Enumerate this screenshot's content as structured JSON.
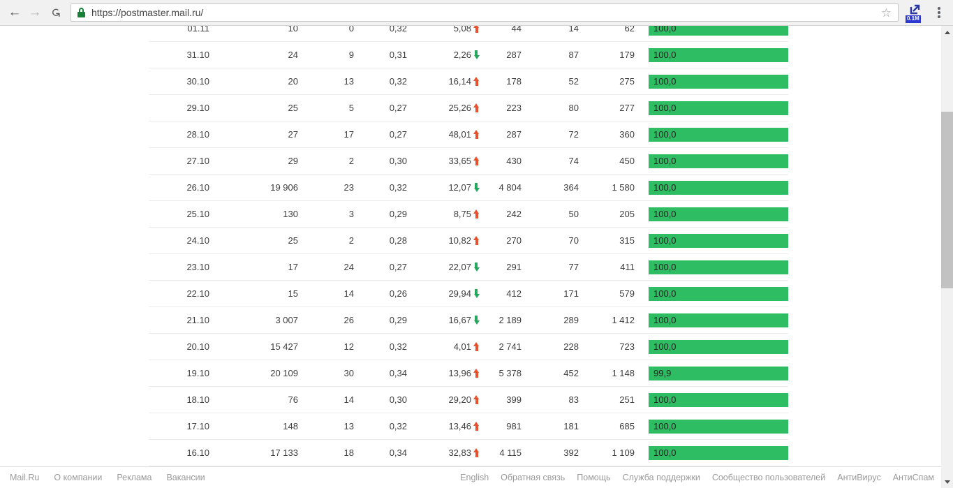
{
  "browser": {
    "url": "https://postmaster.mail.ru/",
    "extension_badge": "0.1M"
  },
  "colors": {
    "bar_green": "#2ebd62",
    "trend_up_red": "#e8512d",
    "trend_down_green": "#27a75d",
    "lock_green": "#188038",
    "badge_blue": "#2a38cf"
  },
  "table": {
    "rows": [
      {
        "date": "01.11",
        "col1": "10",
        "col2": "0",
        "col3": "0,32",
        "delta": "5,08",
        "trend": "up",
        "col5": "44",
        "col6": "14",
        "col7": "62",
        "rate": "100,0",
        "rate_pct": 100
      },
      {
        "date": "31.10",
        "col1": "24",
        "col2": "9",
        "col3": "0,31",
        "delta": "2,26",
        "trend": "down",
        "col5": "287",
        "col6": "87",
        "col7": "179",
        "rate": "100,0",
        "rate_pct": 100
      },
      {
        "date": "30.10",
        "col1": "20",
        "col2": "13",
        "col3": "0,32",
        "delta": "16,14",
        "trend": "up",
        "col5": "178",
        "col6": "52",
        "col7": "275",
        "rate": "100,0",
        "rate_pct": 100
      },
      {
        "date": "29.10",
        "col1": "25",
        "col2": "5",
        "col3": "0,27",
        "delta": "25,26",
        "trend": "up",
        "col5": "223",
        "col6": "80",
        "col7": "277",
        "rate": "100,0",
        "rate_pct": 100
      },
      {
        "date": "28.10",
        "col1": "27",
        "col2": "17",
        "col3": "0,27",
        "delta": "48,01",
        "trend": "up",
        "col5": "287",
        "col6": "72",
        "col7": "360",
        "rate": "100,0",
        "rate_pct": 100
      },
      {
        "date": "27.10",
        "col1": "29",
        "col2": "2",
        "col3": "0,30",
        "delta": "33,65",
        "trend": "up",
        "col5": "430",
        "col6": "74",
        "col7": "450",
        "rate": "100,0",
        "rate_pct": 100
      },
      {
        "date": "26.10",
        "col1": "19 906",
        "col2": "23",
        "col3": "0,32",
        "delta": "12,07",
        "trend": "down",
        "col5": "4 804",
        "col6": "364",
        "col7": "1 580",
        "rate": "100,0",
        "rate_pct": 100
      },
      {
        "date": "25.10",
        "col1": "130",
        "col2": "3",
        "col3": "0,29",
        "delta": "8,75",
        "trend": "up",
        "col5": "242",
        "col6": "50",
        "col7": "205",
        "rate": "100,0",
        "rate_pct": 100
      },
      {
        "date": "24.10",
        "col1": "25",
        "col2": "2",
        "col3": "0,28",
        "delta": "10,82",
        "trend": "up",
        "col5": "270",
        "col6": "70",
        "col7": "315",
        "rate": "100,0",
        "rate_pct": 100
      },
      {
        "date": "23.10",
        "col1": "17",
        "col2": "24",
        "col3": "0,27",
        "delta": "22,07",
        "trend": "down",
        "col5": "291",
        "col6": "77",
        "col7": "411",
        "rate": "100,0",
        "rate_pct": 100
      },
      {
        "date": "22.10",
        "col1": "15",
        "col2": "14",
        "col3": "0,26",
        "delta": "29,94",
        "trend": "down",
        "col5": "412",
        "col6": "171",
        "col7": "579",
        "rate": "100,0",
        "rate_pct": 100
      },
      {
        "date": "21.10",
        "col1": "3 007",
        "col2": "26",
        "col3": "0,29",
        "delta": "16,67",
        "trend": "down",
        "col5": "2 189",
        "col6": "289",
        "col7": "1 412",
        "rate": "100,0",
        "rate_pct": 100
      },
      {
        "date": "20.10",
        "col1": "15 427",
        "col2": "12",
        "col3": "0,32",
        "delta": "4,01",
        "trend": "up",
        "col5": "2 741",
        "col6": "228",
        "col7": "723",
        "rate": "100,0",
        "rate_pct": 100
      },
      {
        "date": "19.10",
        "col1": "20 109",
        "col2": "30",
        "col3": "0,34",
        "delta": "13,96",
        "trend": "up",
        "col5": "5 378",
        "col6": "452",
        "col7": "1 148",
        "rate": "99,9",
        "rate_pct": 99.9
      },
      {
        "date": "18.10",
        "col1": "76",
        "col2": "14",
        "col3": "0,30",
        "delta": "29,20",
        "trend": "up",
        "col5": "399",
        "col6": "83",
        "col7": "251",
        "rate": "100,0",
        "rate_pct": 100
      },
      {
        "date": "17.10",
        "col1": "148",
        "col2": "13",
        "col3": "0,32",
        "delta": "13,46",
        "trend": "up",
        "col5": "981",
        "col6": "181",
        "col7": "685",
        "rate": "100,0",
        "rate_pct": 100
      },
      {
        "date": "16.10",
        "col1": "17 133",
        "col2": "18",
        "col3": "0,34",
        "delta": "32,83",
        "trend": "up",
        "col5": "4 115",
        "col6": "392",
        "col7": "1 109",
        "rate": "100,0",
        "rate_pct": 100
      }
    ]
  },
  "footer": {
    "left_links": [
      "Mail.Ru",
      "О компании",
      "Реклама",
      "Вакансии"
    ],
    "right_links": [
      "English",
      "Обратная связь",
      "Помощь",
      "Служба поддержки",
      "Сообщество пользователей",
      "АнтиВирус",
      "АнтиСпам"
    ]
  }
}
